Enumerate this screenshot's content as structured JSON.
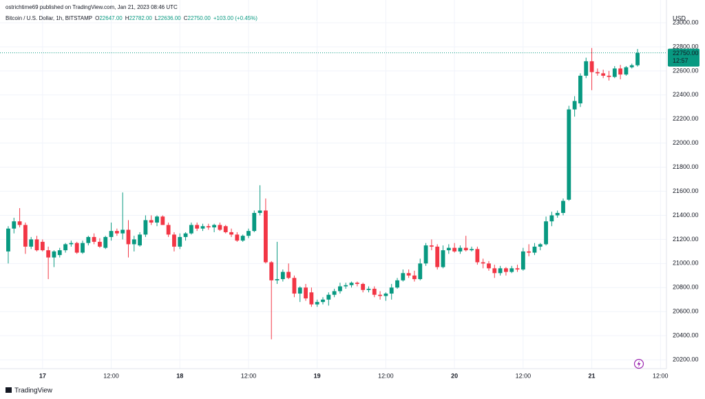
{
  "chart_data": {
    "type": "candlestick",
    "header": {
      "author_line": "ostrichtime69 published on TradingView.com, Jan 21, 2023 08:46 UTC",
      "symbol": "Bitcoin / U.S. Dollar, 1h, BITSTAMP",
      "o_label": "O",
      "o": "22647.00",
      "h_label": "H",
      "h": "22782.00",
      "l_label": "L",
      "l": "22636.00",
      "c_label": "C",
      "c": "22750.00",
      "change": "+103.00 (+0.45%)"
    },
    "currency": "USD",
    "last_price": {
      "value": 22750,
      "label": "22750.00"
    },
    "countdown": "12:57",
    "footer": "TradingView",
    "up_color": "#089981",
    "down_color": "#f23645",
    "grid": true,
    "candles": [
      [
        21100,
        21310,
        21000,
        21290
      ],
      [
        21290,
        21380,
        21250,
        21350
      ],
      [
        21350,
        21460,
        21300,
        21320
      ],
      [
        21320,
        21340,
        21080,
        21140
      ],
      [
        21140,
        21220,
        21120,
        21200
      ],
      [
        21200,
        21230,
        21100,
        21110
      ],
      [
        21180,
        21200,
        21100,
        21110
      ],
      [
        21110,
        21140,
        20870,
        21050
      ],
      [
        21050,
        21110,
        20970,
        21100
      ],
      [
        21070,
        21130,
        21050,
        21110
      ],
      [
        21110,
        21170,
        21090,
        21160
      ],
      [
        21160,
        21190,
        21140,
        21170
      ],
      [
        21170,
        21180,
        21080,
        21090
      ],
      [
        21090,
        21190,
        21080,
        21170
      ],
      [
        21170,
        21230,
        21150,
        21220
      ],
      [
        21220,
        21250,
        21160,
        21180
      ],
      [
        21180,
        21210,
        21130,
        21140
      ],
      [
        21130,
        21230,
        21120,
        21220
      ],
      [
        21220,
        21340,
        21190,
        21270
      ],
      [
        21270,
        21290,
        21230,
        21250
      ],
      [
        21250,
        21590,
        21200,
        21280
      ],
      [
        21280,
        21360,
        21050,
        21160
      ],
      [
        21160,
        21230,
        21100,
        21200
      ],
      [
        21150,
        21260,
        21140,
        21240
      ],
      [
        21240,
        21400,
        21220,
        21360
      ],
      [
        21360,
        21400,
        21320,
        21340
      ],
      [
        21340,
        21400,
        21310,
        21390
      ],
      [
        21390,
        21400,
        21320,
        21320
      ],
      [
        21320,
        21340,
        21220,
        21240
      ],
      [
        21240,
        21260,
        21100,
        21140
      ],
      [
        21140,
        21250,
        21120,
        21220
      ],
      [
        21220,
        21260,
        21190,
        21250
      ],
      [
        21250,
        21340,
        21240,
        21320
      ],
      [
        21320,
        21340,
        21270,
        21290
      ],
      [
        21290,
        21330,
        21270,
        21310
      ],
      [
        21310,
        21330,
        21280,
        21300
      ],
      [
        21300,
        21330,
        21260,
        21320
      ],
      [
        21320,
        21340,
        21270,
        21280
      ],
      [
        21310,
        21320,
        21250,
        21260
      ],
      [
        21260,
        21290,
        21220,
        21240
      ],
      [
        21240,
        21260,
        21180,
        21190
      ],
      [
        21190,
        21240,
        21180,
        21230
      ],
      [
        21230,
        21290,
        21210,
        21270
      ],
      [
        21270,
        21440,
        21260,
        21420
      ],
      [
        21420,
        21650,
        21400,
        21440
      ],
      [
        21440,
        21540,
        21000,
        21010
      ],
      [
        21010,
        21020,
        20370,
        20860
      ],
      [
        20860,
        21180,
        20830,
        20870
      ],
      [
        20870,
        20950,
        20850,
        20930
      ],
      [
        20930,
        21000,
        20870,
        20880
      ],
      [
        20880,
        20900,
        20720,
        20750
      ],
      [
        20750,
        20810,
        20680,
        20800
      ],
      [
        20800,
        20830,
        20690,
        20710
      ],
      [
        20760,
        20800,
        20640,
        20660
      ],
      [
        20660,
        20700,
        20640,
        20680
      ],
      [
        20680,
        20720,
        20660,
        20700
      ],
      [
        20700,
        20760,
        20650,
        20740
      ],
      [
        20740,
        20790,
        20720,
        20770
      ],
      [
        20770,
        20840,
        20750,
        20810
      ],
      [
        20810,
        20840,
        20790,
        20820
      ],
      [
        20820,
        20850,
        20800,
        20840
      ],
      [
        20840,
        20850,
        20810,
        20830
      ],
      [
        20830,
        20840,
        20760,
        20780
      ],
      [
        20780,
        20810,
        20760,
        20790
      ],
      [
        20790,
        20810,
        20720,
        20740
      ],
      [
        20740,
        20770,
        20700,
        20730
      ],
      [
        20730,
        20760,
        20690,
        20750
      ],
      [
        20750,
        20830,
        20700,
        20800
      ],
      [
        20800,
        20880,
        20790,
        20860
      ],
      [
        20860,
        20950,
        20850,
        20920
      ],
      [
        20920,
        20950,
        20880,
        20900
      ],
      [
        20900,
        20940,
        20850,
        20870
      ],
      [
        20870,
        21040,
        20860,
        21000
      ],
      [
        21000,
        21170,
        20980,
        21150
      ],
      [
        21150,
        21200,
        21110,
        21140
      ],
      [
        21140,
        21160,
        20950,
        20970
      ],
      [
        20970,
        21150,
        20960,
        21110
      ],
      [
        21110,
        21160,
        21080,
        21130
      ],
      [
        21130,
        21170,
        21090,
        21100
      ],
      [
        21100,
        21150,
        21080,
        21130
      ],
      [
        21130,
        21230,
        21100,
        21110
      ],
      [
        21110,
        21140,
        21100,
        21120
      ],
      [
        21120,
        21140,
        20990,
        21010
      ],
      [
        21010,
        21040,
        20960,
        21000
      ],
      [
        21000,
        21020,
        20940,
        20960
      ],
      [
        20960,
        20990,
        20880,
        20920
      ],
      [
        20920,
        20980,
        20900,
        20960
      ],
      [
        20960,
        20970,
        20900,
        20930
      ],
      [
        20930,
        20980,
        20920,
        20960
      ],
      [
        20960,
        20990,
        20930,
        20950
      ],
      [
        20950,
        21130,
        20940,
        21100
      ],
      [
        21100,
        21160,
        21060,
        21090
      ],
      [
        21090,
        21170,
        21070,
        21140
      ],
      [
        21140,
        21170,
        21110,
        21160
      ],
      [
        21160,
        21390,
        21150,
        21350
      ],
      [
        21350,
        21430,
        21310,
        21400
      ],
      [
        21400,
        21440,
        21380,
        21420
      ],
      [
        21420,
        21540,
        21400,
        21520
      ],
      [
        21530,
        22310,
        21520,
        22280
      ],
      [
        22280,
        22390,
        22220,
        22350
      ],
      [
        22330,
        22580,
        22300,
        22560
      ],
      [
        22560,
        22710,
        22540,
        22680
      ],
      [
        22680,
        22790,
        22440,
        22590
      ],
      [
        22590,
        22620,
        22560,
        22580
      ],
      [
        22580,
        22610,
        22540,
        22560
      ],
      [
        22560,
        22600,
        22520,
        22550
      ],
      [
        22550,
        22640,
        22540,
        22620
      ],
      [
        22620,
        22650,
        22530,
        22570
      ],
      [
        22570,
        22640,
        22560,
        22630
      ],
      [
        22630,
        22660,
        22620,
        22647
      ],
      [
        22647,
        22782,
        22636,
        22750
      ]
    ],
    "xlim": [
      -1.44,
      115.05
    ],
    "xticks": [
      {
        "value": 6,
        "label": "17"
      },
      {
        "value": 18,
        "label": "12:00"
      },
      {
        "value": 30,
        "label": "18"
      },
      {
        "value": 42,
        "label": "12:00"
      },
      {
        "value": 54,
        "label": "19"
      },
      {
        "value": 66,
        "label": "12:00"
      },
      {
        "value": 78,
        "label": "20"
      },
      {
        "value": 90,
        "label": "12:00"
      },
      {
        "value": 102,
        "label": "21"
      },
      {
        "value": 114,
        "label": "12:00"
      }
    ],
    "ylim": [
      20126,
      23189
    ],
    "yticks": [
      {
        "value": 20200,
        "label": "20200.00"
      },
      {
        "value": 20400,
        "label": "20400.00"
      },
      {
        "value": 20600,
        "label": "20600.00"
      },
      {
        "value": 20800,
        "label": "20800.00"
      },
      {
        "value": 21000,
        "label": "21000.00"
      },
      {
        "value": 21200,
        "label": "21200.00"
      },
      {
        "value": 21400,
        "label": "21400.00"
      },
      {
        "value": 21600,
        "label": "21600.00"
      },
      {
        "value": 21800,
        "label": "21800.00"
      },
      {
        "value": 22000,
        "label": "22000.00"
      },
      {
        "value": 22200,
        "label": "22200.00"
      },
      {
        "value": 22400,
        "label": "22400.00"
      },
      {
        "value": 22600,
        "label": "22600.00"
      },
      {
        "value": 22800,
        "label": "22800.00"
      },
      {
        "value": 23000,
        "label": "23000.00"
      }
    ]
  }
}
